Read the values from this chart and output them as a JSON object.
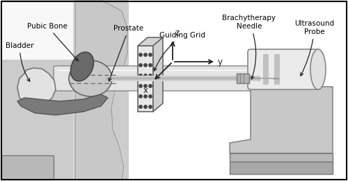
{
  "bg_color": "#ffffff",
  "labels": {
    "bladder": "Bladder",
    "pubic_bone": "Pubic Bone",
    "prostate": "Prostate",
    "guiding_grid": "Guiding Grid",
    "brachytherapy_needle": "Brachytherapy\nNeedle",
    "ultrasound_probe": "Ultrasound\nProbe",
    "x_axis": "x",
    "y_axis": "y",
    "z_axis": "z"
  },
  "colors": {
    "white": "#ffffff",
    "bg_pelvis": "#cccccc",
    "bg_pelvis2": "#d8d8d8",
    "bladder_fill": "#e8e8e8",
    "prostate_fill": "#c0c0c0",
    "pubic_fill": "#777777",
    "rectal_fill": "#e0e0e0",
    "tube_fill": "#d8d8d8",
    "grid_face": "#e8e8e8",
    "grid_side": "#c8c8c8",
    "grid_top2": "#d4d4d4",
    "probe_body": "#e8e8e8",
    "probe_stripe": "#b8b8b8",
    "platform": "#b0b0b0",
    "platform2": "#c0c0c0",
    "needle_color": "#aaaaaa",
    "connector": "#999999",
    "edge": "#555555",
    "edge2": "#888888",
    "arrow": "#222222",
    "axis_arrow": "#333333",
    "dark_organ": "#666666"
  }
}
